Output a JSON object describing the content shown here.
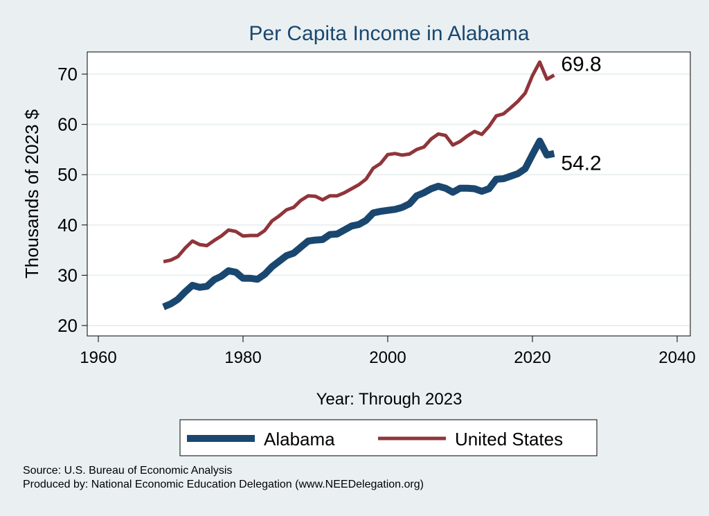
{
  "chart_data": {
    "type": "line",
    "title": "Per Capita Income in Alabama",
    "xlabel": "Year: Through 2023",
    "ylabel": "Thousands of 2023 $",
    "xlim": [
      1960,
      2040
    ],
    "ylim": [
      20,
      72
    ],
    "xticks": [
      1960,
      1980,
      2000,
      2020,
      2040
    ],
    "yticks": [
      20,
      30,
      40,
      50,
      60,
      70
    ],
    "grid": true,
    "legend": "bottom",
    "x": [
      1969,
      1970,
      1971,
      1972,
      1973,
      1974,
      1975,
      1976,
      1977,
      1978,
      1979,
      1980,
      1981,
      1982,
      1983,
      1984,
      1985,
      1986,
      1987,
      1988,
      1989,
      1990,
      1991,
      1992,
      1993,
      1994,
      1995,
      1996,
      1997,
      1998,
      1999,
      2000,
      2001,
      2002,
      2003,
      2004,
      2005,
      2006,
      2007,
      2008,
      2009,
      2010,
      2011,
      2012,
      2013,
      2014,
      2015,
      2016,
      2017,
      2018,
      2019,
      2020,
      2021,
      2022,
      2023
    ],
    "series": [
      {
        "name": "Alabama",
        "color": "#1a476f",
        "values": [
          23.7,
          24.3,
          25.2,
          26.7,
          28.0,
          27.6,
          27.8,
          29.1,
          29.8,
          30.9,
          30.6,
          29.4,
          29.4,
          29.2,
          30.2,
          31.7,
          32.8,
          33.9,
          34.4,
          35.6,
          36.8,
          37.0,
          37.1,
          38.1,
          38.2,
          39.0,
          39.8,
          40.1,
          40.9,
          42.4,
          42.7,
          42.9,
          43.1,
          43.5,
          44.2,
          45.8,
          46.4,
          47.2,
          47.7,
          47.3,
          46.5,
          47.3,
          47.3,
          47.2,
          46.7,
          47.2,
          49.1,
          49.2,
          49.7,
          50.2,
          51.2,
          54.0,
          56.7,
          53.9,
          54.2
        ],
        "end_label": "54.2"
      },
      {
        "name": "United States",
        "color": "#90353b",
        "values": [
          32.7,
          33.0,
          33.7,
          35.4,
          36.8,
          36.1,
          35.9,
          36.9,
          37.8,
          39.0,
          38.7,
          37.8,
          37.9,
          37.9,
          38.9,
          40.8,
          41.8,
          43.0,
          43.5,
          44.9,
          45.8,
          45.7,
          45.0,
          45.8,
          45.8,
          46.4,
          47.2,
          48.0,
          49.1,
          51.3,
          52.2,
          54.0,
          54.2,
          53.9,
          54.1,
          55.0,
          55.5,
          57.1,
          58.1,
          57.8,
          55.9,
          56.6,
          57.7,
          58.6,
          58.0,
          59.6,
          61.7,
          62.1,
          63.3,
          64.6,
          66.2,
          69.7,
          72.4,
          69.0,
          69.8
        ],
        "end_label": "69.8"
      }
    ]
  },
  "footer": {
    "source": "Source: U.S. Bureau of Economic Analysis",
    "produced_by": "Produced by: National Economic Education Delegation (www.NEEDelegation.org)"
  }
}
